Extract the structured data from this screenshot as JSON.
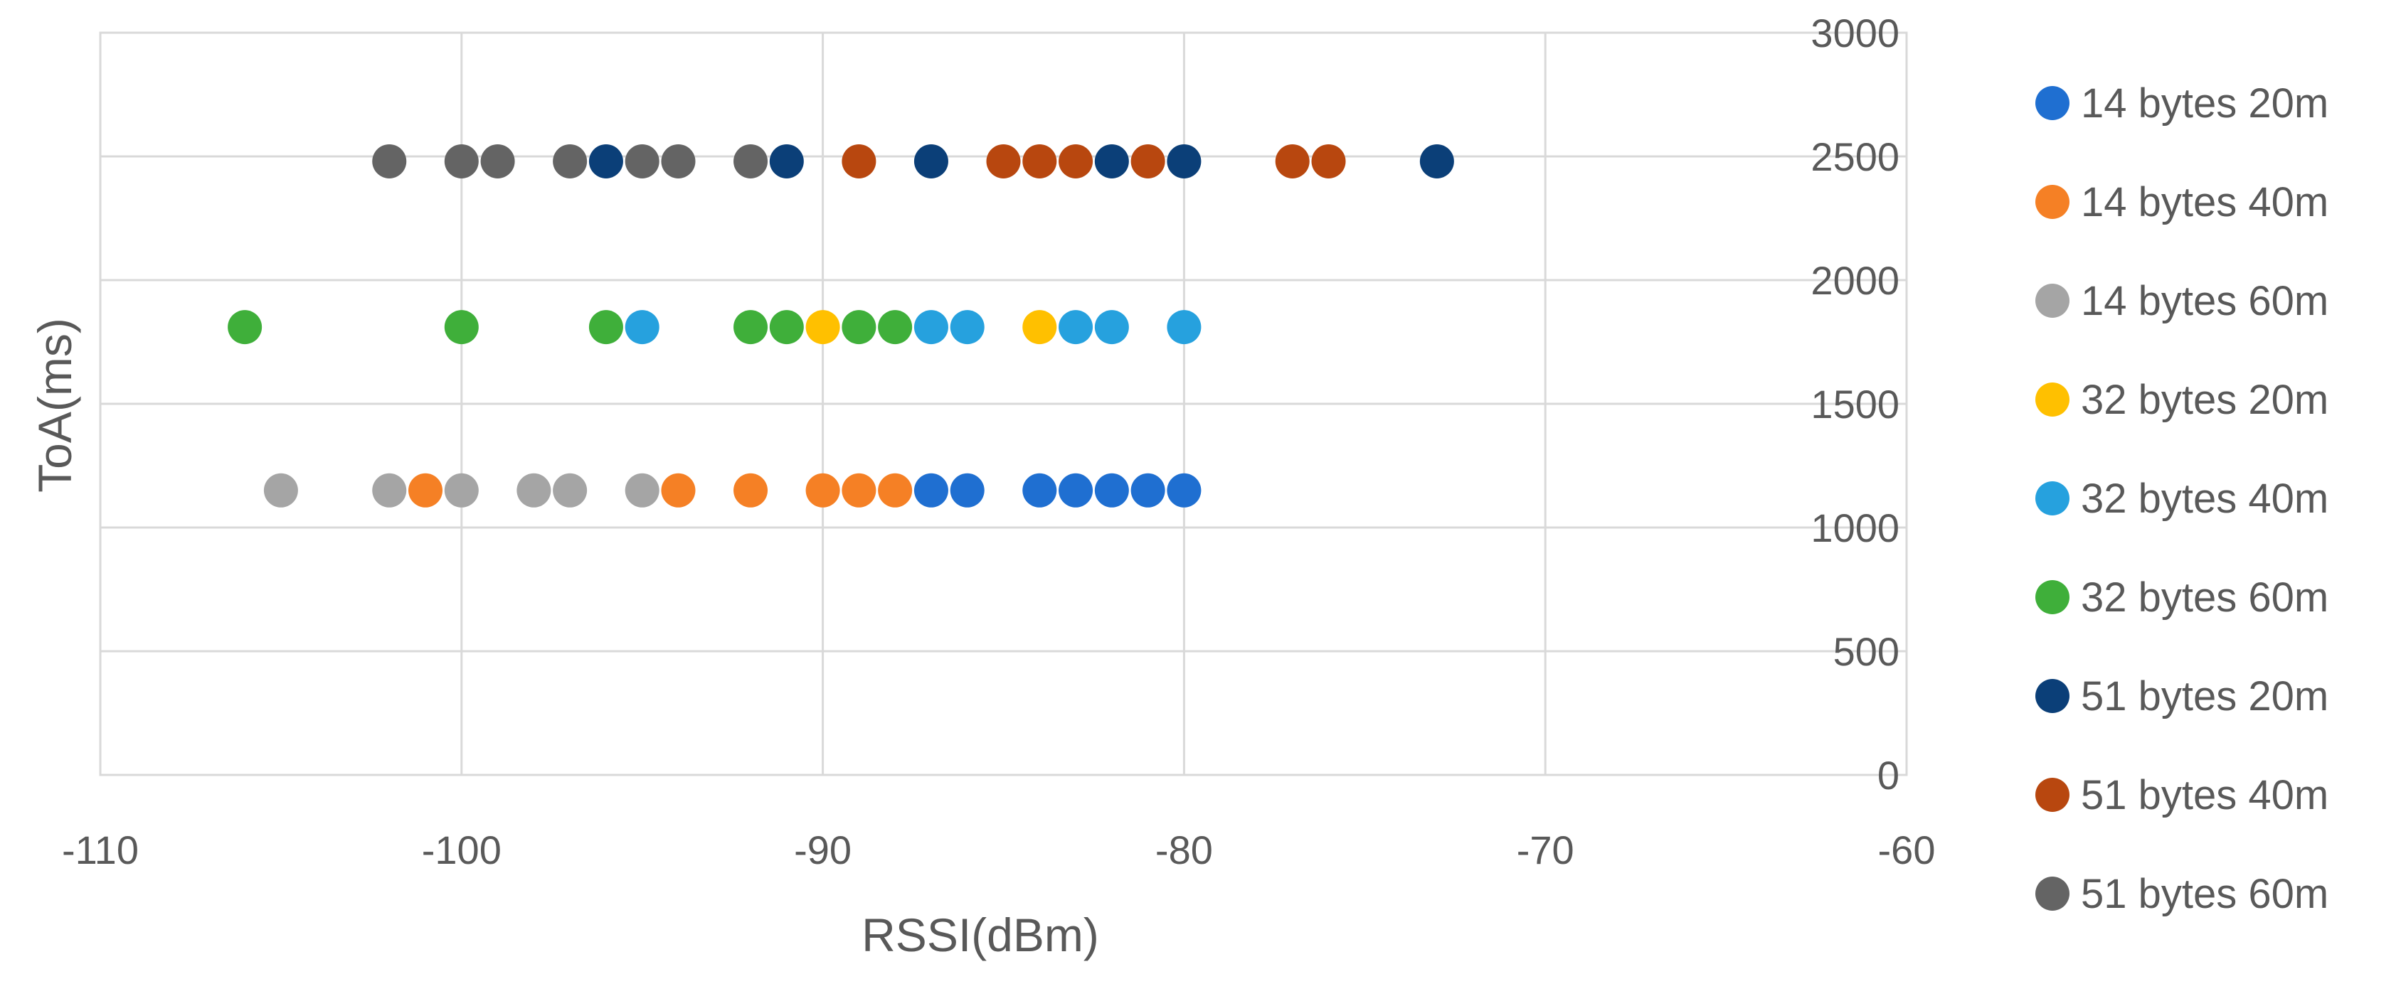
{
  "chart_data": {
    "type": "scatter",
    "title": "",
    "xlabel": "RSSI(dBm)",
    "ylabel": "ToA(ms)",
    "xlim": [
      -110,
      -60
    ],
    "ylim": [
      0,
      3000
    ],
    "xticks": [
      -110,
      -100,
      -90,
      -80,
      -70,
      -60
    ],
    "yticks": [
      0,
      500,
      1000,
      1500,
      2000,
      2500,
      3000
    ],
    "grid": true,
    "legend_position": "right",
    "y_axis_side": "right",
    "series": [
      {
        "name": "14 bytes 20m",
        "color": "#1F6FD1",
        "points": [
          [
            -87,
            1150
          ],
          [
            -86,
            1150
          ],
          [
            -84,
            1150
          ],
          [
            -83,
            1150
          ],
          [
            -82,
            1150
          ],
          [
            -81,
            1150
          ],
          [
            -80,
            1150
          ]
        ]
      },
      {
        "name": "14 bytes 40m",
        "color": "#F58025",
        "points": [
          [
            -101,
            1150
          ],
          [
            -94,
            1150
          ],
          [
            -92,
            1150
          ],
          [
            -90,
            1150
          ],
          [
            -89,
            1150
          ],
          [
            -88,
            1150
          ]
        ]
      },
      {
        "name": "14 bytes 60m",
        "color": "#A5A5A5",
        "points": [
          [
            -105,
            1150
          ],
          [
            -102,
            1150
          ],
          [
            -100,
            1150
          ],
          [
            -98,
            1150
          ],
          [
            -97,
            1150
          ],
          [
            -95,
            1150
          ]
        ]
      },
      {
        "name": "32 bytes 20m",
        "color": "#FFC000",
        "points": [
          [
            -90,
            1810
          ],
          [
            -84,
            1810
          ]
        ]
      },
      {
        "name": "32 bytes 40m",
        "color": "#26A1DE",
        "points": [
          [
            -95,
            1810
          ],
          [
            -87,
            1810
          ],
          [
            -86,
            1810
          ],
          [
            -83,
            1810
          ],
          [
            -82,
            1810
          ],
          [
            -80,
            1810
          ]
        ]
      },
      {
        "name": "32 bytes 60m",
        "color": "#3FAF3A",
        "points": [
          [
            -106,
            1810
          ],
          [
            -100,
            1810
          ],
          [
            -96,
            1810
          ],
          [
            -92,
            1810
          ],
          [
            -91,
            1810
          ],
          [
            -89,
            1810
          ],
          [
            -88,
            1810
          ]
        ]
      },
      {
        "name": "51 bytes 20m",
        "color": "#0B3F78",
        "points": [
          [
            -96,
            2480
          ],
          [
            -91,
            2480
          ],
          [
            -87,
            2480
          ],
          [
            -82,
            2480
          ],
          [
            -80,
            2480
          ],
          [
            -73,
            2480
          ]
        ]
      },
      {
        "name": "51 bytes 40m",
        "color": "#B8470F",
        "points": [
          [
            -89,
            2480
          ],
          [
            -85,
            2480
          ],
          [
            -84,
            2480
          ],
          [
            -83,
            2480
          ],
          [
            -81,
            2480
          ],
          [
            -77,
            2480
          ],
          [
            -76,
            2480
          ]
        ]
      },
      {
        "name": "51 bytes 60m",
        "color": "#646464",
        "points": [
          [
            -102,
            2480
          ],
          [
            -100,
            2480
          ],
          [
            -99,
            2480
          ],
          [
            -97,
            2480
          ],
          [
            -95,
            2480
          ],
          [
            -94,
            2480
          ],
          [
            -92,
            2480
          ]
        ]
      }
    ]
  }
}
